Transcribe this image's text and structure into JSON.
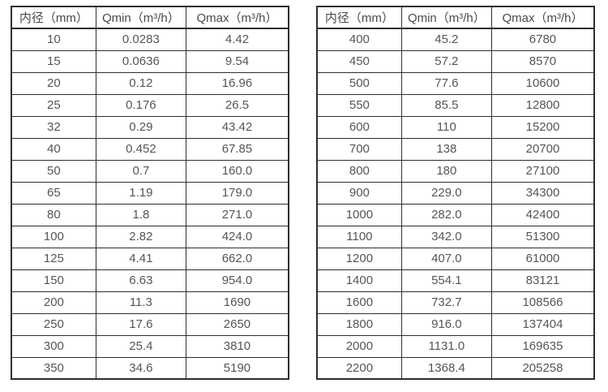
{
  "colors": {
    "border": "#2e2e2e",
    "text": "#555555",
    "header_text": "#4a4a4a",
    "background": "#ffffff"
  },
  "column_names": [
    "diameter-cell",
    "qmin-cell",
    "qmax-cell"
  ],
  "tables": [
    {
      "name": "flow-spec-table-small-diameters",
      "headers": [
        "内径（mm）",
        "Qmin（m³/h）",
        "Qmax（m³/h）"
      ],
      "rows": [
        [
          "10",
          "0.0283",
          "4.42"
        ],
        [
          "15",
          "0.0636",
          "9.54"
        ],
        [
          "20",
          "0.12",
          "16.96"
        ],
        [
          "25",
          "0.176",
          "26.5"
        ],
        [
          "32",
          "0.29",
          "43.42"
        ],
        [
          "40",
          "0.452",
          "67.85"
        ],
        [
          "50",
          "0.7",
          "160.0"
        ],
        [
          "65",
          "1.19",
          "179.0"
        ],
        [
          "80",
          "1.8",
          "271.0"
        ],
        [
          "100",
          "2.82",
          "424.0"
        ],
        [
          "125",
          "4.41",
          "662.0"
        ],
        [
          "150",
          "6.63",
          "954.0"
        ],
        [
          "200",
          "11.3",
          "1690"
        ],
        [
          "250",
          "17.6",
          "2650"
        ],
        [
          "300",
          "25.4",
          "3810"
        ],
        [
          "350",
          "34.6",
          "5190"
        ]
      ]
    },
    {
      "name": "flow-spec-table-large-diameters",
      "headers": [
        "内径（mm）",
        "Qmin（m³/h）",
        "Qmax（m³/h）"
      ],
      "rows": [
        [
          "400",
          "45.2",
          "6780"
        ],
        [
          "450",
          "57.2",
          "8570"
        ],
        [
          "500",
          "77.6",
          "10600"
        ],
        [
          "550",
          "85.5",
          "12800"
        ],
        [
          "600",
          "110",
          "15200"
        ],
        [
          "700",
          "138",
          "20700"
        ],
        [
          "800",
          "180",
          "27100"
        ],
        [
          "900",
          "229.0",
          "34300"
        ],
        [
          "1000",
          "282.0",
          "42400"
        ],
        [
          "1100",
          "342.0",
          "51300"
        ],
        [
          "1200",
          "407.0",
          "61000"
        ],
        [
          "1400",
          "554.1",
          "83121"
        ],
        [
          "1600",
          "732.7",
          "108566"
        ],
        [
          "1800",
          "916.0",
          "137404"
        ],
        [
          "2000",
          "1131.0",
          "169635"
        ],
        [
          "2200",
          "1368.4",
          "205258"
        ]
      ]
    }
  ]
}
